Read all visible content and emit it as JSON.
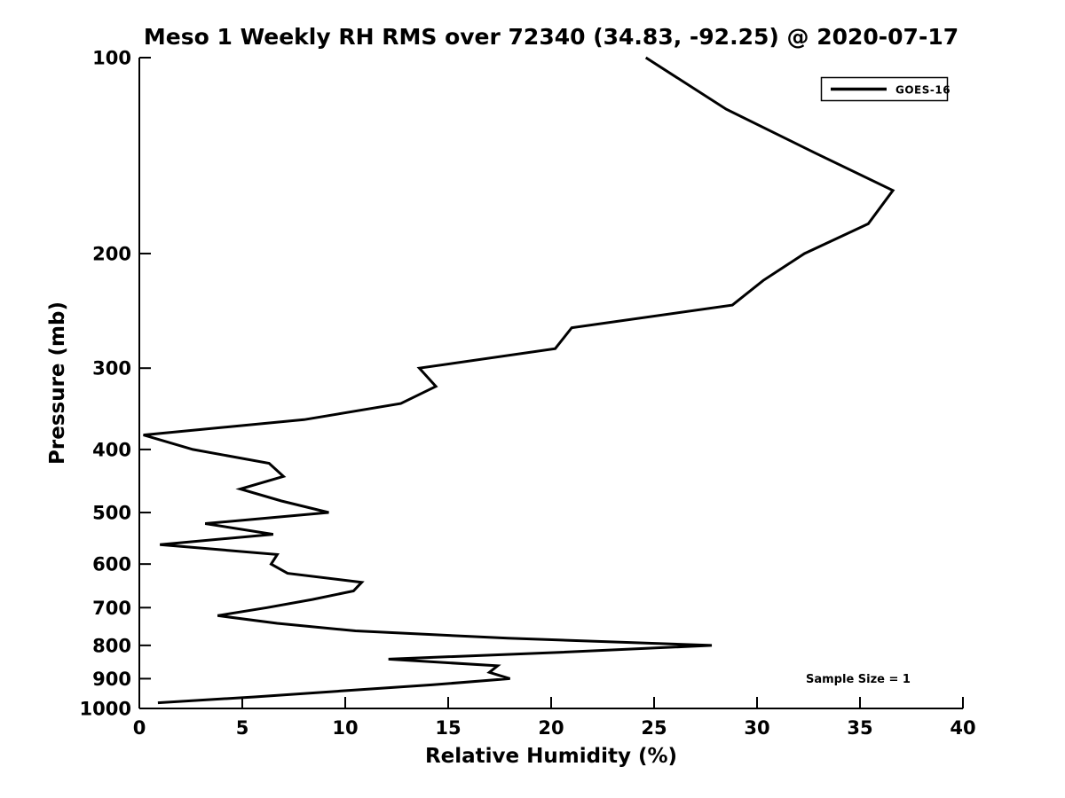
{
  "title": "Meso 1 Weekly RH RMS over 72340 (34.83, -92.25) @ 2020-07-17",
  "legend": {
    "label": "GOES-16",
    "position": "upper right"
  },
  "annotation": {
    "sample_size_text": "Sample Size = 1"
  },
  "colors": {
    "line": "#000000",
    "axis": "#000000",
    "background": "#ffffff"
  },
  "chart_data": {
    "type": "line",
    "title": "Meso 1 Weekly RH RMS over 72340 (34.83, -92.25) @ 2020-07-17",
    "xlabel": "Relative Humidity (%)",
    "ylabel": "Pressure (mb)",
    "xlim": [
      0,
      40
    ],
    "ylim": [
      100,
      1000
    ],
    "yscale": "log",
    "y_axis_inverted_pressure": true,
    "grid": false,
    "x_ticks": [
      0,
      5,
      10,
      15,
      20,
      25,
      30,
      35,
      40
    ],
    "y_ticks": [
      100,
      200,
      300,
      400,
      500,
      600,
      700,
      800,
      900,
      1000
    ],
    "legend_position": "upper right",
    "annotations": [
      {
        "text": "Sample Size = 1",
        "x_pct": 35,
        "pressure_mb": 895
      }
    ],
    "series": [
      {
        "name": "GOES-16",
        "color": "#000000",
        "linewidth": 3,
        "pressure_mb": [
          100,
          120,
          140,
          160,
          180,
          200,
          220,
          240,
          260,
          280,
          300,
          320,
          340,
          360,
          380,
          400,
          420,
          440,
          460,
          480,
          500,
          520,
          540,
          560,
          580,
          600,
          620,
          640,
          660,
          680,
          700,
          720,
          740,
          760,
          780,
          800,
          820,
          840,
          860,
          880,
          900,
          920,
          940,
          960,
          980
        ],
        "rh_rms_percent": [
          24.6,
          28.5,
          32.8,
          36.6,
          35.4,
          32.3,
          30.3,
          28.8,
          21.0,
          20.2,
          13.6,
          14.4,
          12.7,
          8.0,
          0.2,
          2.6,
          6.3,
          7.0,
          4.9,
          6.9,
          9.2,
          3.2,
          6.5,
          1.0,
          6.7,
          6.4,
          7.2,
          10.8,
          10.4,
          8.4,
          6.2,
          3.8,
          6.7,
          10.5,
          17.9,
          27.8,
          20.4,
          12.1,
          17.4,
          17.0,
          18.0,
          14.2,
          9.8,
          5.6,
          0.9
        ]
      }
    ]
  }
}
